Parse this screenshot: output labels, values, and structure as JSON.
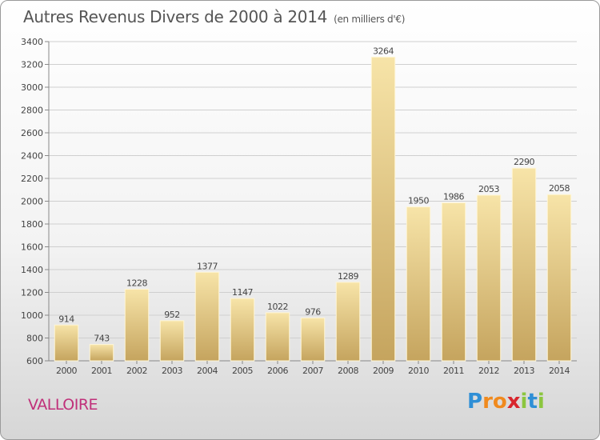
{
  "title": {
    "main": "Autres Revenus Divers de 2000 à 2014",
    "unit": "(en milliers d'€)"
  },
  "location": "VALLOIRE",
  "logo": {
    "letters": [
      {
        "ch": "P",
        "color": "#2f8fd6"
      },
      {
        "ch": "r",
        "color": "#f08a1e"
      },
      {
        "ch": "o",
        "color": "#f08a1e"
      },
      {
        "ch": "x",
        "color": "#d8262d"
      },
      {
        "ch": "i",
        "color": "#8cc63f"
      },
      {
        "ch": "t",
        "color": "#2f8fd6"
      },
      {
        "ch": "i",
        "color": "#8cc63f"
      }
    ]
  },
  "colors": {
    "bar_top": "#f7e4a8",
    "bar_bottom": "#c5a45e",
    "text": "#444444",
    "grid": "#cfcfcf"
  },
  "chart_data": {
    "type": "bar",
    "categories": [
      "2000",
      "2001",
      "2002",
      "2003",
      "2004",
      "2005",
      "2006",
      "2007",
      "2008",
      "2009",
      "2010",
      "2011",
      "2012",
      "2013",
      "2014"
    ],
    "values": [
      914,
      743,
      1228,
      952,
      1377,
      1147,
      1022,
      976,
      1289,
      3264,
      1950,
      1986,
      2053,
      2290,
      2058
    ],
    "ylim": [
      600,
      3400
    ],
    "yticks": [
      600,
      800,
      1000,
      1200,
      1400,
      1600,
      1800,
      2000,
      2200,
      2400,
      2600,
      2800,
      3000,
      3200,
      3400
    ],
    "grid": true,
    "xlabel": "",
    "ylabel": ""
  }
}
